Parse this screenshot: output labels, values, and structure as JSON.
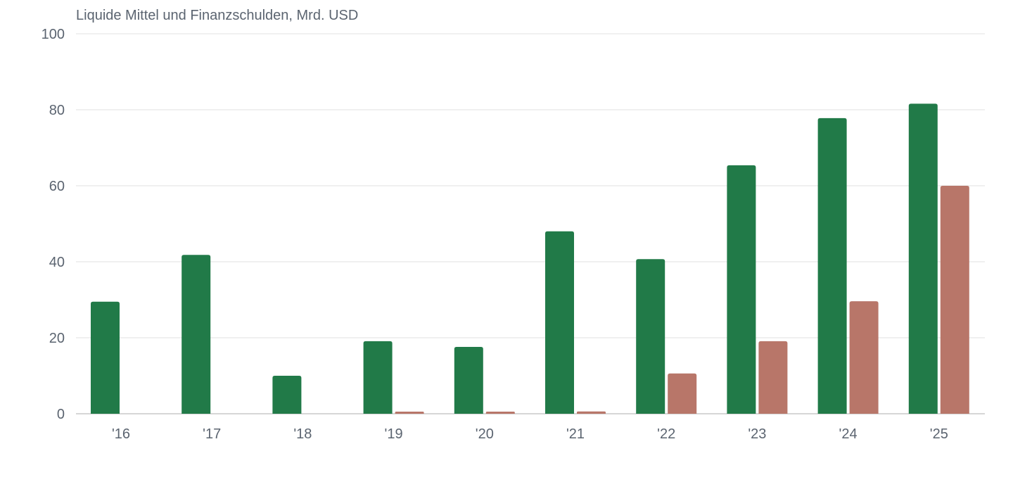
{
  "chart_data": {
    "type": "bar",
    "title": "Liquide Mittel und Finanzschulden, Mrd. USD",
    "xlabel": "",
    "ylabel": "",
    "categories": [
      "'16",
      "'17",
      "'18",
      "'19",
      "'20",
      "'21",
      "'22",
      "'23",
      "'24",
      "'25"
    ],
    "series": [
      {
        "color": "#217a48",
        "values": [
          29.5,
          41.8,
          10.0,
          19.1,
          17.6,
          48.0,
          40.7,
          65.4,
          77.8,
          81.6
        ]
      },
      {
        "color": "#b87669",
        "values": [
          0,
          0,
          0,
          0.5,
          0.5,
          0.6,
          10.6,
          19.1,
          29.6,
          60.0
        ]
      }
    ],
    "ylim": [
      0,
      100
    ],
    "yticks": [
      0,
      20,
      40,
      60,
      80,
      100
    ],
    "grid": true,
    "legend": "none"
  }
}
